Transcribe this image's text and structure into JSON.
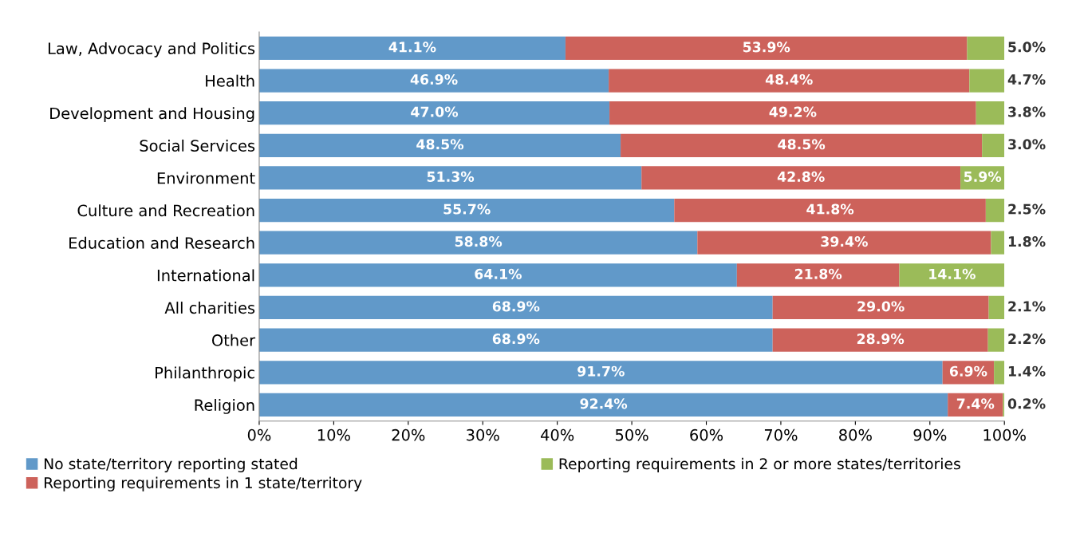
{
  "chart_data": {
    "type": "bar",
    "orientation": "horizontal",
    "stacked": true,
    "categories": [
      "Law, Advocacy and Politics",
      "Health",
      "Development and Housing",
      "Social Services",
      "Environment",
      "Culture and Recreation",
      "Education and Research",
      "International",
      "All charities",
      "Other",
      "Philanthropic",
      "Religion"
    ],
    "series": [
      {
        "name": "No state/territory reporting stated",
        "color": "#6199c9",
        "values": [
          41.1,
          46.9,
          47.0,
          48.5,
          51.3,
          55.7,
          58.8,
          64.1,
          68.9,
          68.9,
          91.7,
          92.4
        ],
        "value_labels": [
          "41.1%",
          "46.9%",
          "47.0%",
          "48.5%",
          "51.3%",
          "55.7%",
          "58.8%",
          "64.1%",
          "68.9%",
          "68.9%",
          "91.7%",
          "92.4%"
        ]
      },
      {
        "name": "Reporting requirements in 1 state/territory",
        "color": "#cd625b",
        "values": [
          53.9,
          48.4,
          49.2,
          48.5,
          42.8,
          41.8,
          39.4,
          21.8,
          29.0,
          28.9,
          6.9,
          7.4
        ],
        "value_labels": [
          "53.9%",
          "48.4%",
          "49.2%",
          "48.5%",
          "42.8%",
          "41.8%",
          "39.4%",
          "21.8%",
          "29.0%",
          "28.9%",
          "6.9%",
          "7.4%"
        ]
      },
      {
        "name": "Reporting requirements in 2 or more states/territories",
        "color": "#9bbb59",
        "values": [
          5.0,
          4.7,
          3.8,
          3.0,
          5.9,
          2.5,
          1.8,
          14.1,
          2.1,
          2.2,
          1.4,
          0.2
        ],
        "value_labels": [
          "5.0%",
          "4.7%",
          "3.8%",
          "3.0%",
          "5.9%",
          "2.5%",
          "1.8%",
          "14.1%",
          "2.1%",
          "2.2%",
          "1.4%",
          "0.2%"
        ]
      }
    ],
    "xlim": [
      0,
      100
    ],
    "xticks": [
      {
        "value": 0,
        "label": "0%"
      },
      {
        "value": 10,
        "label": "10%"
      },
      {
        "value": 20,
        "label": "20%"
      },
      {
        "value": 30,
        "label": "30%"
      },
      {
        "value": 40,
        "label": "40%"
      },
      {
        "value": 50,
        "label": "50%"
      },
      {
        "value": 60,
        "label": "60%"
      },
      {
        "value": 70,
        "label": "70%"
      },
      {
        "value": 80,
        "label": "80%"
      },
      {
        "value": 90,
        "label": "90%"
      },
      {
        "value": 100,
        "label": "100%"
      }
    ],
    "legend": "bottom",
    "grid": false
  }
}
